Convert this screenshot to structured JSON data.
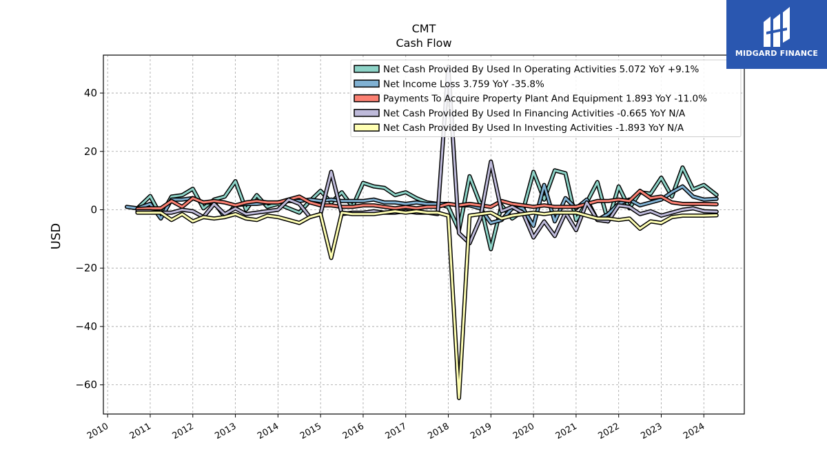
{
  "chart_data": {
    "type": "line",
    "title": "CMT",
    "subtitle": "Cash Flow",
    "ylabel": "USD",
    "xlabel": "",
    "xlim": [
      2009.9,
      2024.95
    ],
    "ylim": [
      -70,
      53
    ],
    "y_ticks": [
      40,
      20,
      0,
      -20,
      -40,
      -60
    ],
    "y_tick_labels": [
      "40",
      "20",
      "0",
      "−20",
      "−40",
      "−60"
    ],
    "x_ticks": [
      2010,
      2011,
      2012,
      2013,
      2014,
      2015,
      2016,
      2017,
      2018,
      2019,
      2020,
      2021,
      2022,
      2023,
      2024
    ],
    "x_tick_labels": [
      "2010",
      "2011",
      "2012",
      "2013",
      "2014",
      "2015",
      "2016",
      "2017",
      "2018",
      "2019",
      "2020",
      "2021",
      "2022",
      "2023",
      "2024"
    ],
    "grid": true,
    "legend_position": "top-right",
    "series": [
      {
        "name": "Net Cash Provided By Used In Operating Activities",
        "legend_label": "Net Cash Provided By Used In Operating Activities  5.072 YoY +9.1%",
        "color": "#8dd3c7",
        "points": [
          [
            2010.7,
            0.5
          ],
          [
            2011.0,
            4.7
          ],
          [
            2011.25,
            -2.0
          ],
          [
            2011.5,
            4.5
          ],
          [
            2011.75,
            5.0
          ],
          [
            2012.0,
            7.2
          ],
          [
            2012.25,
            0.5
          ],
          [
            2012.5,
            3.5
          ],
          [
            2012.75,
            4.5
          ],
          [
            2013.0,
            9.8
          ],
          [
            2013.25,
            0.0
          ],
          [
            2013.5,
            5.0
          ],
          [
            2013.75,
            1.0
          ],
          [
            2014.0,
            2.0
          ],
          [
            2014.25,
            0.5
          ],
          [
            2014.5,
            -1.0
          ],
          [
            2014.75,
            3.0
          ],
          [
            2015.0,
            6.5
          ],
          [
            2015.25,
            2.5
          ],
          [
            2015.5,
            6.0
          ],
          [
            2015.75,
            1.0
          ],
          [
            2016.0,
            9.2
          ],
          [
            2016.25,
            8.0
          ],
          [
            2016.5,
            7.5
          ],
          [
            2016.75,
            5.0
          ],
          [
            2017.0,
            6.0
          ],
          [
            2017.25,
            4.0
          ],
          [
            2017.5,
            2.5
          ],
          [
            2017.75,
            2.0
          ],
          [
            2018.0,
            1.0
          ],
          [
            2018.25,
            -7.0
          ],
          [
            2018.5,
            11.5
          ],
          [
            2018.75,
            2.0
          ],
          [
            2019.0,
            -13.5
          ],
          [
            2019.25,
            1.5
          ],
          [
            2019.5,
            -3.0
          ],
          [
            2019.75,
            -0.5
          ],
          [
            2020.0,
            13.0
          ],
          [
            2020.25,
            3.5
          ],
          [
            2020.5,
            13.5
          ],
          [
            2020.75,
            12.5
          ],
          [
            2021.0,
            -3.5
          ],
          [
            2021.25,
            2.5
          ],
          [
            2021.5,
            9.5
          ],
          [
            2021.75,
            -4.0
          ],
          [
            2022.0,
            8.0
          ],
          [
            2022.25,
            0.5
          ],
          [
            2022.5,
            6.0
          ],
          [
            2022.75,
            5.5
          ],
          [
            2023.0,
            11.0
          ],
          [
            2023.25,
            4.5
          ],
          [
            2023.5,
            14.5
          ],
          [
            2023.75,
            7.0
          ],
          [
            2024.0,
            8.5
          ],
          [
            2024.3,
            5.072
          ]
        ]
      },
      {
        "name": "Net Income Loss",
        "legend_label": "Net Income Loss  3.759 YoY -35.8%",
        "color": "#80b1d3",
        "points": [
          [
            2010.45,
            1.0
          ],
          [
            2010.7,
            0.5
          ],
          [
            2011.0,
            2.0
          ],
          [
            2011.25,
            -3.0
          ],
          [
            2011.5,
            3.5
          ],
          [
            2011.75,
            3.5
          ],
          [
            2012.0,
            4.0
          ],
          [
            2012.25,
            2.5
          ],
          [
            2012.5,
            2.5
          ],
          [
            2012.75,
            -2.5
          ],
          [
            2013.0,
            1.5
          ],
          [
            2013.25,
            2.0
          ],
          [
            2013.5,
            2.0
          ],
          [
            2013.75,
            2.5
          ],
          [
            2014.0,
            2.5
          ],
          [
            2014.25,
            3.0
          ],
          [
            2014.5,
            3.0
          ],
          [
            2014.75,
            3.5
          ],
          [
            2015.0,
            3.0
          ],
          [
            2015.25,
            3.5
          ],
          [
            2015.5,
            3.0
          ],
          [
            2015.75,
            3.0
          ],
          [
            2016.0,
            3.0
          ],
          [
            2016.25,
            3.5
          ],
          [
            2016.5,
            2.5
          ],
          [
            2016.75,
            2.5
          ],
          [
            2017.0,
            2.0
          ],
          [
            2017.25,
            2.5
          ],
          [
            2017.5,
            2.0
          ],
          [
            2017.75,
            2.0
          ],
          [
            2018.0,
            2.0
          ],
          [
            2018.25,
            1.5
          ],
          [
            2018.5,
            1.5
          ],
          [
            2018.75,
            0.5
          ],
          [
            2019.0,
            -4.5
          ],
          [
            2019.25,
            -3.5
          ],
          [
            2019.5,
            0.5
          ],
          [
            2019.75,
            0.5
          ],
          [
            2020.0,
            -5.5
          ],
          [
            2020.25,
            8.5
          ],
          [
            2020.5,
            -4.0
          ],
          [
            2020.75,
            4.0
          ],
          [
            2021.0,
            0.5
          ],
          [
            2021.25,
            3.5
          ],
          [
            2021.5,
            -3.5
          ],
          [
            2021.75,
            -1.5
          ],
          [
            2022.0,
            2.0
          ],
          [
            2022.25,
            3.5
          ],
          [
            2022.5,
            1.5
          ],
          [
            2022.75,
            2.5
          ],
          [
            2023.0,
            3.5
          ],
          [
            2023.25,
            6.0
          ],
          [
            2023.5,
            8.0
          ],
          [
            2023.75,
            4.5
          ],
          [
            2024.0,
            3.5
          ],
          [
            2024.3,
            3.759
          ]
        ]
      },
      {
        "name": "Payments To Acquire Property Plant And Equipment",
        "legend_label": "Payments To Acquire Property Plant And Equipment  1.893 YoY -11.0%",
        "color": "#fb8072",
        "points": [
          [
            2010.7,
            0.3
          ],
          [
            2011.0,
            0.5
          ],
          [
            2011.25,
            0.5
          ],
          [
            2011.5,
            3.0
          ],
          [
            2011.75,
            1.0
          ],
          [
            2012.0,
            4.0
          ],
          [
            2012.25,
            2.5
          ],
          [
            2012.5,
            3.0
          ],
          [
            2012.75,
            2.5
          ],
          [
            2013.0,
            1.5
          ],
          [
            2013.25,
            2.5
          ],
          [
            2013.5,
            3.0
          ],
          [
            2013.75,
            2.5
          ],
          [
            2014.0,
            2.5
          ],
          [
            2014.25,
            3.5
          ],
          [
            2014.5,
            4.5
          ],
          [
            2014.75,
            2.5
          ],
          [
            2015.0,
            1.5
          ],
          [
            2015.25,
            1.5
          ],
          [
            2015.5,
            1.0
          ],
          [
            2015.75,
            1.0
          ],
          [
            2016.0,
            1.5
          ],
          [
            2016.25,
            1.5
          ],
          [
            2016.5,
            1.0
          ],
          [
            2016.75,
            0.5
          ],
          [
            2017.0,
            1.0
          ],
          [
            2017.25,
            0.5
          ],
          [
            2017.5,
            1.0
          ],
          [
            2017.75,
            1.0
          ],
          [
            2018.0,
            2.0
          ],
          [
            2018.25,
            1.5
          ],
          [
            2018.5,
            2.0
          ],
          [
            2018.75,
            1.5
          ],
          [
            2019.0,
            1.0
          ],
          [
            2019.25,
            3.0
          ],
          [
            2019.5,
            2.0
          ],
          [
            2019.75,
            1.5
          ],
          [
            2020.0,
            1.0
          ],
          [
            2020.25,
            1.5
          ],
          [
            2020.5,
            1.0
          ],
          [
            2020.75,
            1.0
          ],
          [
            2021.0,
            1.0
          ],
          [
            2021.25,
            2.0
          ],
          [
            2021.5,
            3.0
          ],
          [
            2021.75,
            3.0
          ],
          [
            2022.0,
            3.5
          ],
          [
            2022.25,
            3.0
          ],
          [
            2022.5,
            6.5
          ],
          [
            2022.75,
            4.0
          ],
          [
            2023.0,
            4.5
          ],
          [
            2023.25,
            2.5
          ],
          [
            2023.5,
            2.0
          ],
          [
            2023.75,
            2.0
          ],
          [
            2024.0,
            2.0
          ],
          [
            2024.3,
            1.893
          ]
        ]
      },
      {
        "name": "Net Cash Provided By Used In Financing Activities",
        "legend_label": "Net Cash Provided By Used In Financing Activities  -0.665 YoY N/A",
        "color": "#bebada",
        "points": [
          [
            2010.7,
            -0.5
          ],
          [
            2011.0,
            -0.5
          ],
          [
            2011.25,
            -1.0
          ],
          [
            2011.5,
            -1.0
          ],
          [
            2011.75,
            0.0
          ],
          [
            2012.0,
            -0.5
          ],
          [
            2012.25,
            -2.5
          ],
          [
            2012.5,
            2.0
          ],
          [
            2012.75,
            -1.5
          ],
          [
            2013.0,
            0.5
          ],
          [
            2013.25,
            -1.5
          ],
          [
            2013.5,
            -1.0
          ],
          [
            2013.75,
            -0.5
          ],
          [
            2014.0,
            0.0
          ],
          [
            2014.25,
            3.5
          ],
          [
            2014.5,
            2.0
          ],
          [
            2014.75,
            -2.5
          ],
          [
            2015.0,
            -1.5
          ],
          [
            2015.25,
            13.0
          ],
          [
            2015.5,
            -1.5
          ],
          [
            2015.75,
            -1.0
          ],
          [
            2016.0,
            -1.0
          ],
          [
            2016.25,
            -0.5
          ],
          [
            2016.5,
            -1.0
          ],
          [
            2016.75,
            -1.0
          ],
          [
            2017.0,
            -0.5
          ],
          [
            2017.25,
            -1.0
          ],
          [
            2017.5,
            -1.0
          ],
          [
            2017.75,
            -1.5
          ],
          [
            2018.0,
            49.0
          ],
          [
            2018.25,
            -8.0
          ],
          [
            2018.5,
            -11.5
          ],
          [
            2018.75,
            -3.0
          ],
          [
            2019.0,
            16.5
          ],
          [
            2019.25,
            -0.5
          ],
          [
            2019.5,
            1.0
          ],
          [
            2019.75,
            -1.0
          ],
          [
            2020.0,
            -9.5
          ],
          [
            2020.25,
            -4.0
          ],
          [
            2020.5,
            -9.0
          ],
          [
            2020.75,
            -1.0
          ],
          [
            2021.0,
            -7.0
          ],
          [
            2021.25,
            2.5
          ],
          [
            2021.5,
            -3.5
          ],
          [
            2021.75,
            -4.0
          ],
          [
            2022.0,
            1.5
          ],
          [
            2022.25,
            1.0
          ],
          [
            2022.5,
            -1.5
          ],
          [
            2022.75,
            -0.5
          ],
          [
            2023.0,
            -2.0
          ],
          [
            2023.25,
            -1.0
          ],
          [
            2023.5,
            0.0
          ],
          [
            2023.75,
            0.5
          ],
          [
            2024.0,
            -0.5
          ],
          [
            2024.3,
            -0.665
          ]
        ]
      },
      {
        "name": "Net Cash Provided By Used In Investing Activities",
        "legend_label": "Net Cash Provided By Used In Investing Activities  -1.893 YoY N/A",
        "color": "#ffffb3",
        "points": [
          [
            2010.7,
            -1.0
          ],
          [
            2011.0,
            -1.0
          ],
          [
            2011.25,
            -1.0
          ],
          [
            2011.5,
            -3.5
          ],
          [
            2011.75,
            -1.5
          ],
          [
            2012.0,
            -4.0
          ],
          [
            2012.25,
            -2.5
          ],
          [
            2012.5,
            -3.0
          ],
          [
            2012.75,
            -2.5
          ],
          [
            2013.0,
            -1.5
          ],
          [
            2013.25,
            -3.0
          ],
          [
            2013.5,
            -3.5
          ],
          [
            2013.75,
            -2.0
          ],
          [
            2014.0,
            -2.5
          ],
          [
            2014.25,
            -3.5
          ],
          [
            2014.5,
            -4.5
          ],
          [
            2014.75,
            -2.5
          ],
          [
            2015.0,
            -1.5
          ],
          [
            2015.25,
            -16.5
          ],
          [
            2015.5,
            -1.0
          ],
          [
            2015.75,
            -1.5
          ],
          [
            2016.0,
            -1.5
          ],
          [
            2016.25,
            -1.5
          ],
          [
            2016.5,
            -1.0
          ],
          [
            2016.75,
            -0.5
          ],
          [
            2017.0,
            -1.0
          ],
          [
            2017.25,
            -0.5
          ],
          [
            2017.5,
            -1.0
          ],
          [
            2017.75,
            -1.0
          ],
          [
            2018.0,
            -2.0
          ],
          [
            2018.25,
            -64.5
          ],
          [
            2018.5,
            -2.0
          ],
          [
            2018.75,
            -1.5
          ],
          [
            2019.0,
            -1.0
          ],
          [
            2019.25,
            -3.0
          ],
          [
            2019.5,
            -2.0
          ],
          [
            2019.75,
            -1.5
          ],
          [
            2020.0,
            -1.0
          ],
          [
            2020.25,
            -1.5
          ],
          [
            2020.5,
            -1.0
          ],
          [
            2020.75,
            -1.0
          ],
          [
            2021.0,
            -1.0
          ],
          [
            2021.25,
            -2.0
          ],
          [
            2021.5,
            -3.0
          ],
          [
            2021.75,
            -3.0
          ],
          [
            2022.0,
            -3.5
          ],
          [
            2022.25,
            -3.0
          ],
          [
            2022.5,
            -6.5
          ],
          [
            2022.75,
            -4.0
          ],
          [
            2023.0,
            -4.5
          ],
          [
            2023.25,
            -2.5
          ],
          [
            2023.5,
            -2.0
          ],
          [
            2023.75,
            -2.0
          ],
          [
            2024.0,
            -2.0
          ],
          [
            2024.3,
            -1.893
          ]
        ]
      }
    ]
  },
  "branding": {
    "logo_text": "MIDGARD FINANCE",
    "logo_color": "#2a57b0",
    "logo_icon": "midgard-logo-icon"
  }
}
